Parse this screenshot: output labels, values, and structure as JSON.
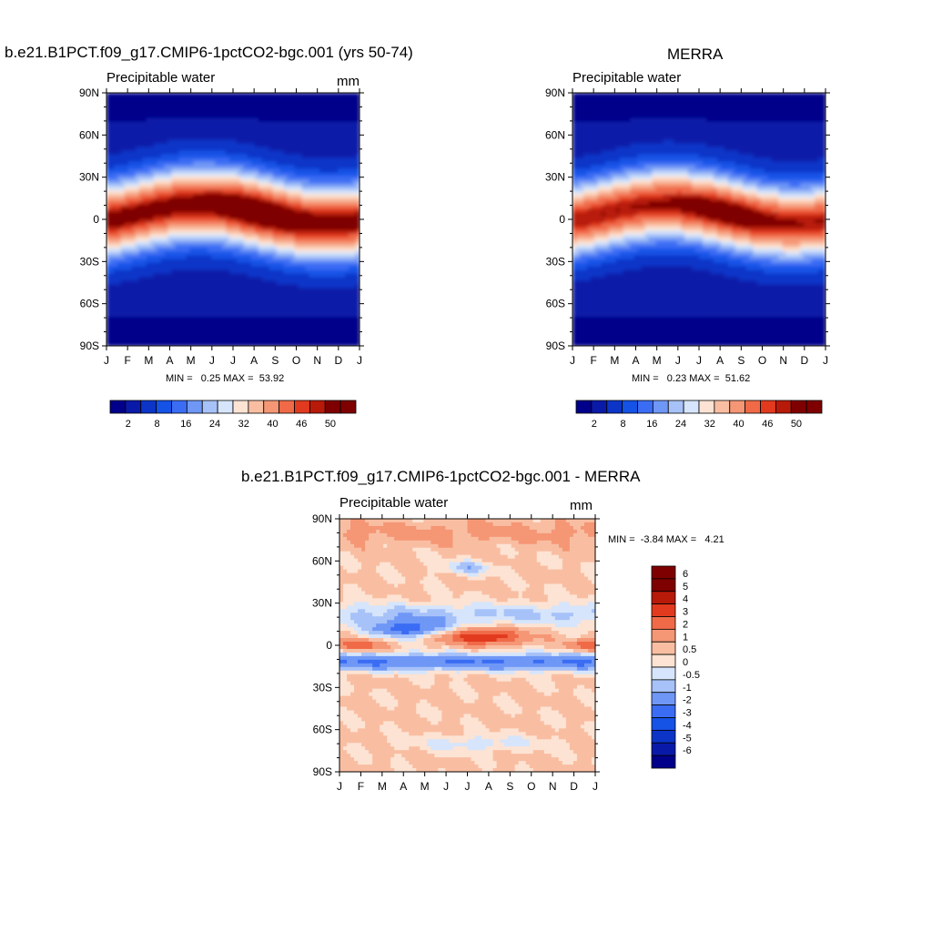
{
  "colormap_abs": [
    "#00008a",
    "#0a1aa8",
    "#0c35c8",
    "#1552e6",
    "#3a6cf4",
    "#6f97f6",
    "#a7c2f8",
    "#d6e5fb",
    "#fde3d3",
    "#f9bea2",
    "#f59675",
    "#f06a48",
    "#e23a1e",
    "#b81a0a",
    "#7f0000"
  ],
  "colormap_diff": [
    "#00008a",
    "#0a1aa8",
    "#0c35c8",
    "#1552e6",
    "#3a6cf4",
    "#6f97f6",
    "#a7c2f8",
    "#d6e5fb",
    "#fde3d3",
    "#f9bea2",
    "#f59675",
    "#f06a48",
    "#e23a1e",
    "#b81a0a",
    "#7f0000",
    "#7f0000"
  ],
  "chart_data": [
    {
      "type": "heatmap",
      "title": "b.e21.B1PCT.f09_g17.CMIP6-1pctCO2-bgc.001 (yrs 50-74)",
      "subtitle": "Precipitable water",
      "units": "mm",
      "x_tick_labels": [
        "J",
        "F",
        "M",
        "A",
        "M",
        "J",
        "J",
        "A",
        "S",
        "O",
        "N",
        "D",
        "J"
      ],
      "y_tick_labels": [
        "90N",
        "60N",
        "30N",
        "0",
        "30S",
        "60S",
        "90S"
      ],
      "y_values": [
        90,
        60,
        30,
        0,
        -30,
        -60,
        -90
      ],
      "stats": "MIN =   0.25 MAX =  53.92",
      "colorbar_labels": [
        "2",
        "8",
        "16",
        "24",
        "32",
        "40",
        "46",
        "50"
      ],
      "levels": [
        2,
        4,
        8,
        12,
        16,
        20,
        24,
        28,
        32,
        36,
        40,
        44,
        46,
        48,
        50
      ],
      "range": [
        0.25,
        53.92
      ]
    },
    {
      "type": "heatmap",
      "title": "MERRA",
      "subtitle": "Precipitable water",
      "units": "",
      "x_tick_labels": [
        "J",
        "F",
        "M",
        "A",
        "M",
        "J",
        "J",
        "A",
        "S",
        "O",
        "N",
        "D",
        "J"
      ],
      "y_tick_labels": [
        "90N",
        "60N",
        "30N",
        "0",
        "30S",
        "60S",
        "90S"
      ],
      "y_values": [
        90,
        60,
        30,
        0,
        -30,
        -60,
        -90
      ],
      "stats": "MIN =   0.23 MAX =  51.62",
      "colorbar_labels": [
        "2",
        "8",
        "16",
        "24",
        "32",
        "40",
        "46",
        "50"
      ],
      "levels": [
        2,
        4,
        8,
        12,
        16,
        20,
        24,
        28,
        32,
        36,
        40,
        44,
        46,
        48,
        50
      ],
      "range": [
        0.23,
        51.62
      ]
    },
    {
      "type": "heatmap",
      "title": "b.e21.B1PCT.f09_g17.CMIP6-1pctCO2-bgc.001 - MERRA",
      "subtitle": "Precipitable water",
      "units": "mm",
      "x_tick_labels": [
        "J",
        "F",
        "M",
        "A",
        "M",
        "J",
        "J",
        "A",
        "S",
        "O",
        "N",
        "D",
        "J"
      ],
      "y_tick_labels": [
        "90N",
        "60N",
        "30N",
        "0",
        "30S",
        "60S",
        "90S"
      ],
      "y_values": [
        90,
        60,
        30,
        0,
        -30,
        -60,
        -90
      ],
      "stats": "MIN =  -3.84 MAX =   4.21",
      "colorbar_labels": [
        "6",
        "5",
        "4",
        "3",
        "2",
        "1",
        "0.5",
        "0",
        "-0.5",
        "-1",
        "-2",
        "-3",
        "-4",
        "-5",
        "-6"
      ],
      "levels": [
        -6,
        -5,
        -4,
        -3,
        -2,
        -1,
        -0.5,
        0,
        0.5,
        1,
        2,
        3,
        4,
        5,
        6
      ],
      "range": [
        -3.84,
        4.21
      ]
    }
  ]
}
